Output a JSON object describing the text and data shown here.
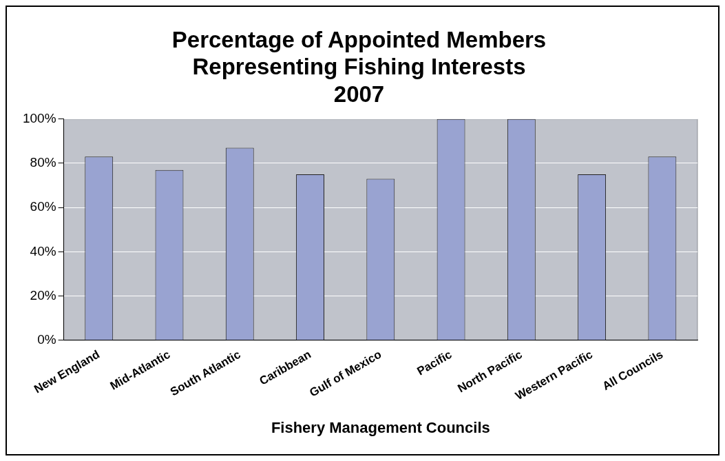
{
  "chart_data": {
    "type": "bar",
    "title": [
      "Percentage of Appointed Members",
      "Representing Fishing Interests",
      "2007"
    ],
    "xlabel": "Fishery Management Councils",
    "categories": [
      "New England",
      "Mid-Atlantic",
      "South Atlantic",
      "Caribbean",
      "Gulf of Mexico",
      "Pacific",
      "North Pacific",
      "Western Pacific",
      "All Councils"
    ],
    "values": [
      83,
      77,
      87,
      75,
      73,
      100,
      100,
      75,
      83
    ],
    "color": "#99a3d1",
    "ylim": [
      0,
      100
    ],
    "yticks": [
      {
        "value": 0,
        "label": "0%"
      },
      {
        "value": 20,
        "label": "20%"
      },
      {
        "value": 40,
        "label": "40%"
      },
      {
        "value": 60,
        "label": "60%"
      },
      {
        "value": 80,
        "label": "80%"
      },
      {
        "value": 100,
        "label": "100%"
      }
    ],
    "grid": "y",
    "legend": false
  }
}
